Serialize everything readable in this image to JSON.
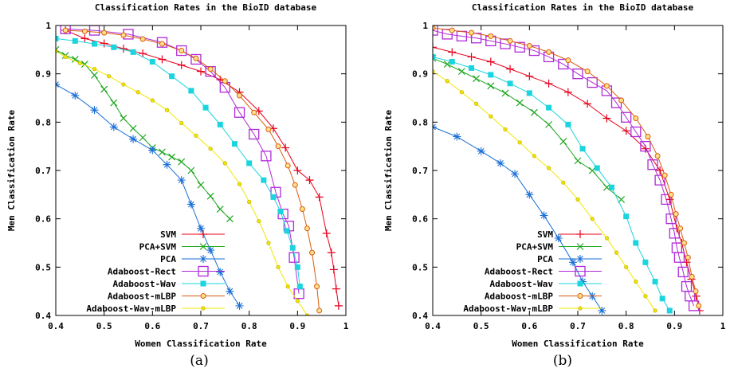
{
  "captions": [
    "(a)",
    "(b)"
  ],
  "chart_data": [
    {
      "type": "line",
      "title": "Classification Rates in the BioID database",
      "xlabel": "Women Classification Rate",
      "ylabel": "Men Classification Rate",
      "xlim": [
        0.4,
        1
      ],
      "ylim": [
        0.4,
        1
      ],
      "xticks": [
        "0.4",
        "0.5",
        "0.6",
        "0.7",
        "0.8",
        "0.9",
        "1"
      ],
      "yticks": [
        "0.4",
        "0.5",
        "0.6",
        "0.7",
        "0.8",
        "0.9",
        "1"
      ],
      "grid": false,
      "legend_position": "bottom-left",
      "series": [
        {
          "name": "SVM",
          "color": "#e8001c",
          "marker": "plus",
          "x": [
            0.42,
            0.46,
            0.5,
            0.54,
            0.58,
            0.62,
            0.66,
            0.7,
            0.74,
            0.78,
            0.82,
            0.85,
            0.875,
            0.9,
            0.925,
            0.945,
            0.96,
            0.97,
            0.975,
            0.98,
            0.985
          ],
          "y": [
            0.99,
            0.973,
            0.963,
            0.952,
            0.942,
            0.93,
            0.918,
            0.905,
            0.888,
            0.862,
            0.823,
            0.787,
            0.747,
            0.7,
            0.68,
            0.645,
            0.57,
            0.53,
            0.495,
            0.455,
            0.42
          ]
        },
        {
          "name": "PCA+SVM",
          "color": "#1ea620",
          "marker": "cross",
          "x": [
            0.4,
            0.42,
            0.44,
            0.46,
            0.48,
            0.5,
            0.52,
            0.54,
            0.56,
            0.58,
            0.6,
            0.62,
            0.64,
            0.66,
            0.68,
            0.7,
            0.72,
            0.74,
            0.76
          ],
          "y": [
            0.95,
            0.938,
            0.93,
            0.92,
            0.897,
            0.868,
            0.84,
            0.808,
            0.787,
            0.768,
            0.747,
            0.738,
            0.728,
            0.718,
            0.7,
            0.67,
            0.647,
            0.62,
            0.6
          ]
        },
        {
          "name": "PCA",
          "color": "#1a6fd6",
          "marker": "star",
          "x": [
            0.4,
            0.44,
            0.48,
            0.52,
            0.56,
            0.6,
            0.63,
            0.66,
            0.68,
            0.7,
            0.72,
            0.74,
            0.76,
            0.78
          ],
          "y": [
            0.878,
            0.855,
            0.825,
            0.79,
            0.765,
            0.742,
            0.712,
            0.68,
            0.63,
            0.58,
            0.535,
            0.49,
            0.45,
            0.42
          ]
        },
        {
          "name": "Adaboost-Rect",
          "color": "#b02ad8",
          "marker": "square",
          "x": [
            0.42,
            0.48,
            0.55,
            0.62,
            0.66,
            0.69,
            0.72,
            0.75,
            0.78,
            0.81,
            0.835,
            0.855,
            0.87,
            0.882,
            0.893,
            0.903
          ],
          "y": [
            0.993,
            0.99,
            0.982,
            0.965,
            0.948,
            0.93,
            0.905,
            0.872,
            0.82,
            0.775,
            0.73,
            0.655,
            0.61,
            0.585,
            0.52,
            0.445
          ]
        },
        {
          "name": "Adaboost-Wav",
          "color": "#1ad4de",
          "marker": "filled-square",
          "x": [
            0.4,
            0.44,
            0.48,
            0.52,
            0.56,
            0.6,
            0.64,
            0.68,
            0.71,
            0.74,
            0.77,
            0.8,
            0.83,
            0.85,
            0.865,
            0.878,
            0.89,
            0.9,
            0.905
          ],
          "y": [
            0.973,
            0.968,
            0.962,
            0.955,
            0.945,
            0.925,
            0.895,
            0.865,
            0.83,
            0.795,
            0.755,
            0.715,
            0.68,
            0.645,
            0.615,
            0.575,
            0.54,
            0.5,
            0.46
          ]
        },
        {
          "name": "Adaboost-mLBP",
          "color": "#d85c10",
          "marker": "circle",
          "x": [
            0.42,
            0.46,
            0.5,
            0.54,
            0.58,
            0.62,
            0.66,
            0.69,
            0.72,
            0.75,
            0.78,
            0.81,
            0.84,
            0.86,
            0.88,
            0.895,
            0.91,
            0.92,
            0.93,
            0.94,
            0.945
          ],
          "y": [
            0.99,
            0.988,
            0.985,
            0.98,
            0.972,
            0.962,
            0.948,
            0.932,
            0.91,
            0.885,
            0.855,
            0.82,
            0.785,
            0.75,
            0.71,
            0.67,
            0.62,
            0.58,
            0.53,
            0.46,
            0.41
          ]
        },
        {
          "name": "Adaboost-Wav-mLBP",
          "color": "#f0e800",
          "marker": "small-circle",
          "x": [
            0.4,
            0.42,
            0.45,
            0.48,
            0.51,
            0.54,
            0.57,
            0.6,
            0.63,
            0.66,
            0.69,
            0.72,
            0.75,
            0.78,
            0.8,
            0.82,
            0.84,
            0.86,
            0.88,
            0.9,
            0.92
          ],
          "y": [
            0.947,
            0.935,
            0.922,
            0.91,
            0.895,
            0.878,
            0.862,
            0.845,
            0.825,
            0.798,
            0.772,
            0.745,
            0.715,
            0.672,
            0.635,
            0.595,
            0.55,
            0.5,
            0.46,
            0.43,
            0.4
          ]
        }
      ]
    },
    {
      "type": "line",
      "title": "Classification Rates in the BioID database",
      "xlabel": "Women Classification Rate",
      "ylabel": "Men Classification Rate",
      "xlim": [
        0.4,
        1
      ],
      "ylim": [
        0.4,
        1
      ],
      "xticks": [
        "0.4",
        "0.5",
        "0.6",
        "0.7",
        "0.8",
        "0.9",
        "1"
      ],
      "yticks": [
        "0.4",
        "0.5",
        "0.6",
        "0.7",
        "0.8",
        "0.9",
        "1"
      ],
      "grid": false,
      "legend_position": "bottom-left",
      "series": [
        {
          "name": "SVM",
          "color": "#e8001c",
          "marker": "plus",
          "x": [
            0.4,
            0.44,
            0.48,
            0.52,
            0.56,
            0.6,
            0.64,
            0.68,
            0.72,
            0.76,
            0.8,
            0.84,
            0.87,
            0.89,
            0.905,
            0.915,
            0.925,
            0.935,
            0.945,
            0.952
          ],
          "y": [
            0.955,
            0.945,
            0.935,
            0.925,
            0.91,
            0.895,
            0.88,
            0.862,
            0.838,
            0.808,
            0.782,
            0.745,
            0.7,
            0.64,
            0.58,
            0.55,
            0.51,
            0.475,
            0.44,
            0.41
          ]
        },
        {
          "name": "PCA+SVM",
          "color": "#1ea620",
          "marker": "cross",
          "x": [
            0.4,
            0.43,
            0.46,
            0.49,
            0.52,
            0.55,
            0.58,
            0.61,
            0.64,
            0.67,
            0.7,
            0.73,
            0.76,
            0.79
          ],
          "y": [
            0.932,
            0.92,
            0.905,
            0.89,
            0.875,
            0.86,
            0.84,
            0.82,
            0.795,
            0.76,
            0.72,
            0.7,
            0.665,
            0.64
          ]
        },
        {
          "name": "PCA",
          "color": "#1a6fd6",
          "marker": "star",
          "x": [
            0.4,
            0.45,
            0.5,
            0.54,
            0.57,
            0.6,
            0.63,
            0.66,
            0.69,
            0.71,
            0.73,
            0.75
          ],
          "y": [
            0.79,
            0.77,
            0.74,
            0.715,
            0.693,
            0.65,
            0.607,
            0.56,
            0.51,
            0.47,
            0.44,
            0.41
          ]
        },
        {
          "name": "Adaboost-Rect",
          "color": "#b02ad8",
          "marker": "square",
          "x": [
            0.4,
            0.43,
            0.46,
            0.49,
            0.52,
            0.55,
            0.58,
            0.61,
            0.64,
            0.67,
            0.7,
            0.73,
            0.76,
            0.78,
            0.8,
            0.82,
            0.84,
            0.855,
            0.87,
            0.883,
            0.893,
            0.9,
            0.905,
            0.91,
            0.918,
            0.925,
            0.932,
            0.94
          ],
          "y": [
            0.99,
            0.982,
            0.978,
            0.974,
            0.968,
            0.962,
            0.955,
            0.948,
            0.935,
            0.92,
            0.9,
            0.882,
            0.865,
            0.84,
            0.81,
            0.78,
            0.75,
            0.712,
            0.68,
            0.64,
            0.6,
            0.57,
            0.54,
            0.52,
            0.49,
            0.46,
            0.44,
            0.42
          ]
        },
        {
          "name": "Adaboost-Wav",
          "color": "#1ad4de",
          "marker": "filled-square",
          "x": [
            0.4,
            0.44,
            0.48,
            0.52,
            0.56,
            0.6,
            0.64,
            0.68,
            0.71,
            0.74,
            0.77,
            0.8,
            0.82,
            0.84,
            0.86,
            0.875,
            0.89
          ],
          "y": [
            0.935,
            0.925,
            0.912,
            0.898,
            0.88,
            0.86,
            0.83,
            0.795,
            0.745,
            0.705,
            0.665,
            0.605,
            0.55,
            0.51,
            0.47,
            0.435,
            0.41
          ]
        },
        {
          "name": "Adaboost-mLBP",
          "color": "#d85c10",
          "marker": "circle",
          "x": [
            0.4,
            0.44,
            0.48,
            0.52,
            0.56,
            0.6,
            0.64,
            0.68,
            0.72,
            0.76,
            0.79,
            0.82,
            0.845,
            0.865,
            0.88,
            0.893,
            0.903,
            0.912,
            0.92,
            0.928,
            0.936,
            0.944,
            0.95
          ],
          "y": [
            0.995,
            0.99,
            0.985,
            0.978,
            0.968,
            0.958,
            0.945,
            0.928,
            0.905,
            0.875,
            0.845,
            0.808,
            0.77,
            0.73,
            0.69,
            0.65,
            0.61,
            0.58,
            0.55,
            0.52,
            0.48,
            0.45,
            0.42
          ]
        },
        {
          "name": "Adaboost-Wav-mLBP",
          "color": "#f0e800",
          "marker": "small-circle",
          "x": [
            0.4,
            0.43,
            0.46,
            0.49,
            0.52,
            0.55,
            0.58,
            0.61,
            0.64,
            0.67,
            0.7,
            0.73,
            0.76,
            0.78,
            0.8,
            0.82,
            0.84,
            0.86
          ],
          "y": [
            0.905,
            0.885,
            0.862,
            0.838,
            0.812,
            0.785,
            0.758,
            0.73,
            0.705,
            0.675,
            0.64,
            0.6,
            0.56,
            0.53,
            0.5,
            0.47,
            0.44,
            0.41
          ]
        }
      ]
    }
  ]
}
